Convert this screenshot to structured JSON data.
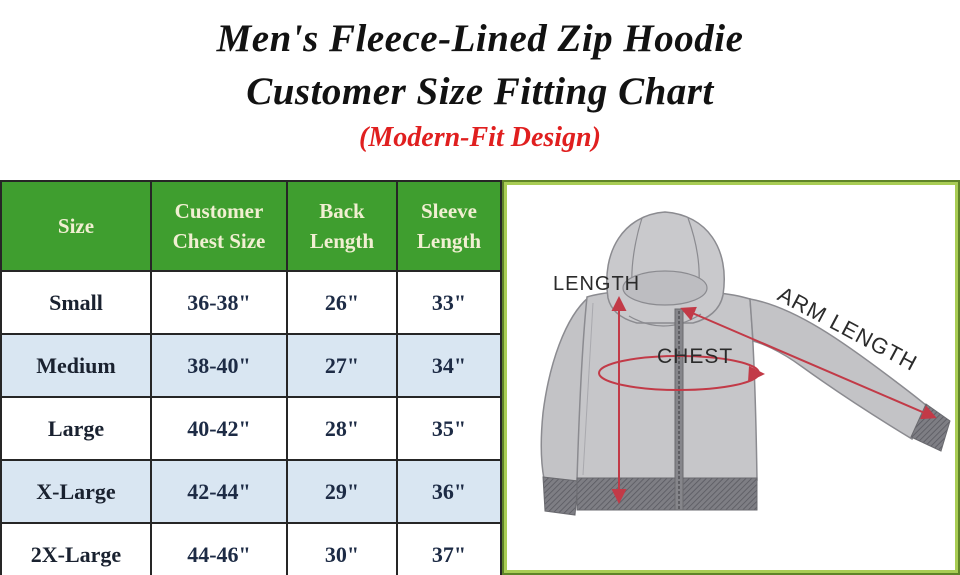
{
  "title": {
    "line1": "Men's Fleece-Lined Zip Hoodie",
    "line2": "Customer Size Fitting Chart",
    "subtitle": "(Modern-Fit Design)"
  },
  "chart_data": {
    "type": "table",
    "title": "Men's Fleece-Lined Zip Hoodie Customer Size Fitting Chart (Modern-Fit Design)",
    "columns": [
      "Size",
      "Customer Chest Size",
      "Back Length",
      "Sleeve Length"
    ],
    "rows": [
      [
        "Small",
        "36-38\"",
        "26\"",
        "33\""
      ],
      [
        "Medium",
        "38-40\"",
        "27\"",
        "34\""
      ],
      [
        "Large",
        "40-42\"",
        "28\"",
        "35\""
      ],
      [
        "X-Large",
        "42-44\"",
        "29\"",
        "36\""
      ],
      [
        "2X-Large",
        "44-46\"",
        "30\"",
        "37\""
      ]
    ]
  },
  "diagram": {
    "length_label": "LENGTH",
    "chest_label": "CHEST",
    "arm_length_label": "ARM LENGTH"
  },
  "colors": {
    "header_green": "#3f9e2f",
    "header_text": "#f1efd2",
    "row_alt_blue": "#d9e6f2",
    "subtitle_red": "#e01f1f",
    "arrow_red": "#c23a47",
    "panel_border_outer": "#5f8428",
    "panel_border_inner": "#a9cd55"
  }
}
